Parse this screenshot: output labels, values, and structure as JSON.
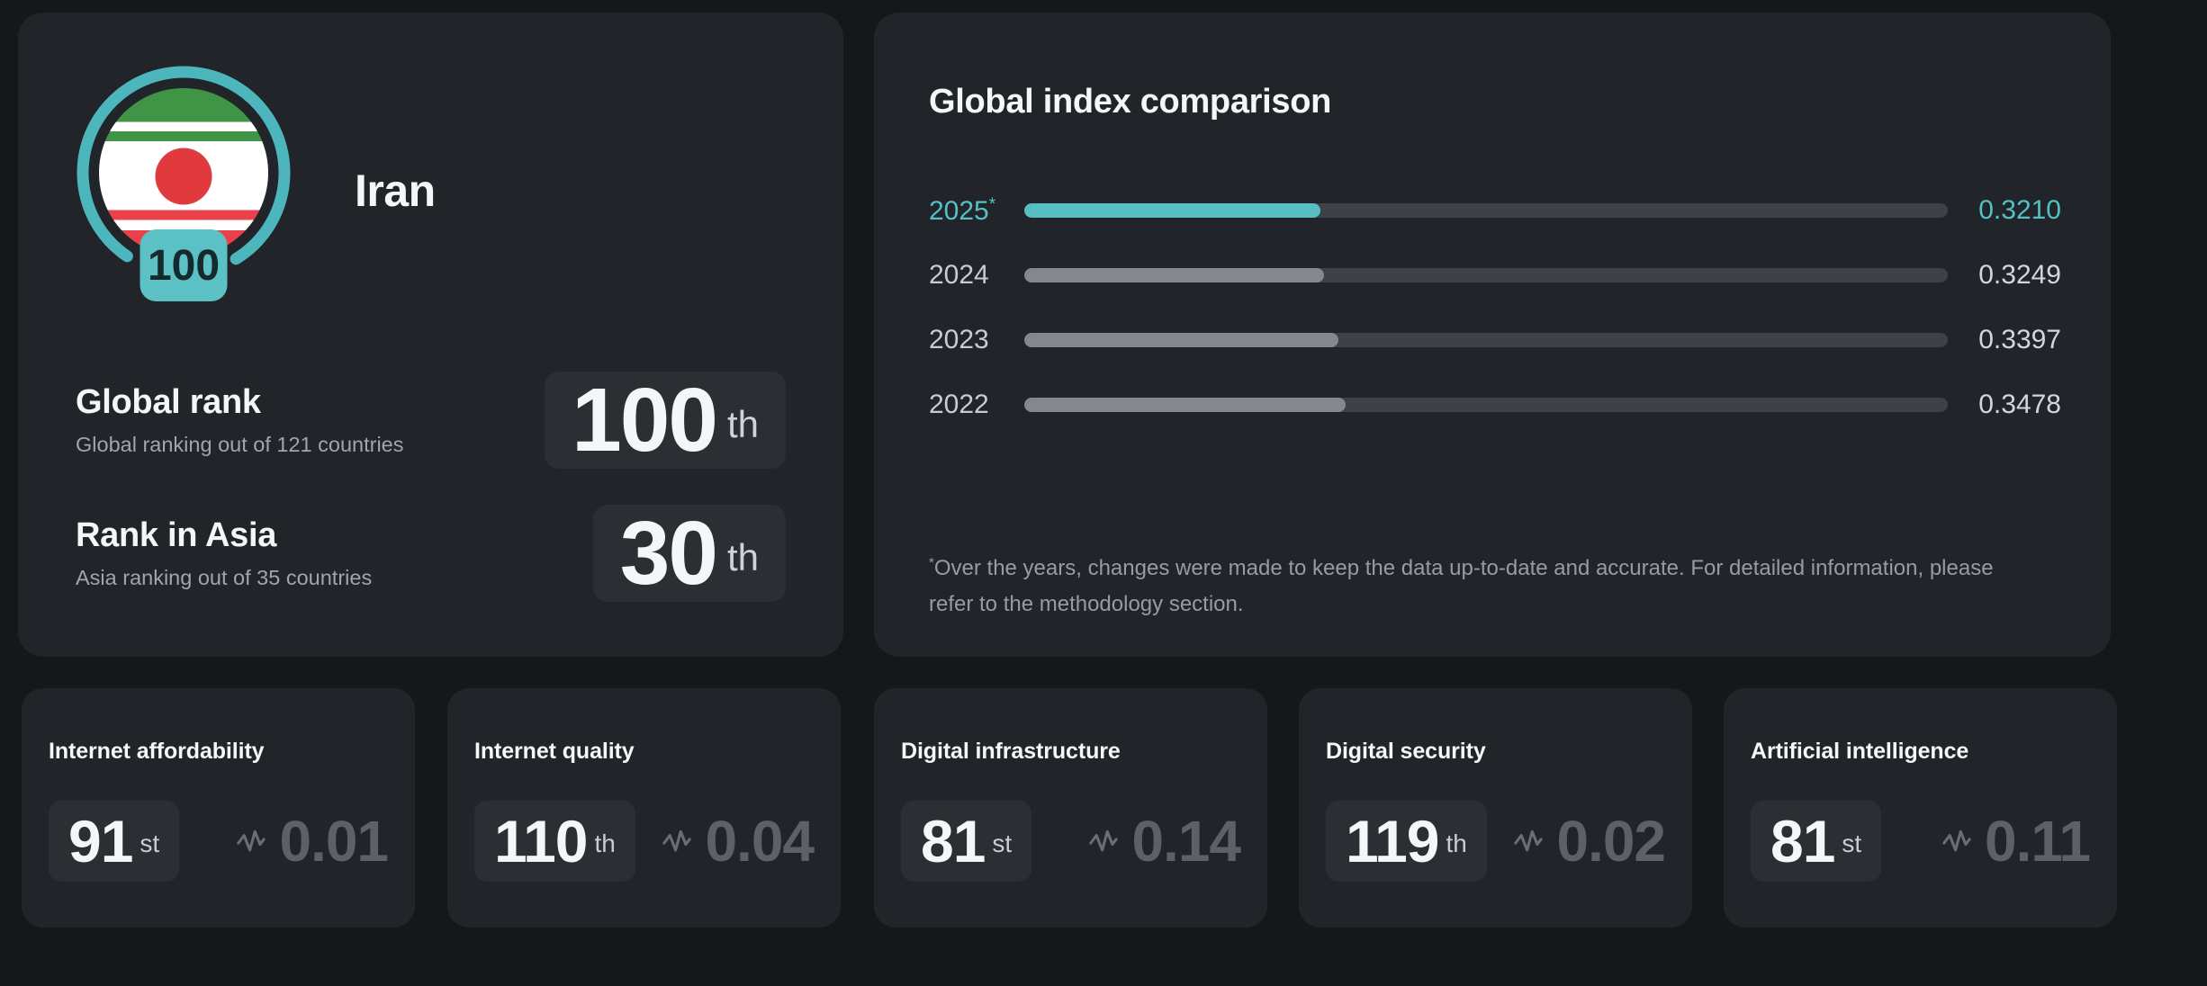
{
  "country_card": {
    "country": "Iran",
    "flag_badge_score": "100",
    "rows": [
      {
        "title": "Global rank",
        "subtitle": "Global ranking out of 121 countries",
        "rank": "100",
        "suffix": "th"
      },
      {
        "title": "Rank in Asia",
        "subtitle": "Asia ranking out of 35 countries",
        "rank": "30",
        "suffix": "th"
      }
    ]
  },
  "comparison_card": {
    "title": "Global index comparison",
    "footnote_mark": "*",
    "footnote": "Over the years, changes were made to keep the data up-to-date and accurate. For detailed information, please refer to the methodology section."
  },
  "chart_data": {
    "type": "bar",
    "orientation": "horizontal",
    "title": "Global index comparison",
    "categories": [
      "2025",
      "2024",
      "2023",
      "2022"
    ],
    "values": [
      0.321,
      0.3249,
      0.3397,
      0.3478
    ],
    "value_labels": [
      "0.3210",
      "0.3249",
      "0.3397",
      "0.3478"
    ],
    "highlight_index": 0,
    "annotation_marker_on": "2025",
    "xlim": [
      0,
      1
    ],
    "grid": false,
    "legend": false
  },
  "stat_cards": [
    {
      "title": "Internet affordability",
      "rank": "91",
      "suffix": "st",
      "score": "0.01"
    },
    {
      "title": "Internet quality",
      "rank": "110",
      "suffix": "th",
      "score": "0.04"
    },
    {
      "title": "Digital infrastructure",
      "rank": "81",
      "suffix": "st",
      "score": "0.14"
    },
    {
      "title": "Digital security",
      "rank": "119",
      "suffix": "th",
      "score": "0.02"
    },
    {
      "title": "Artificial intelligence",
      "rank": "81",
      "suffix": "st",
      "score": "0.11"
    }
  ],
  "colors": {
    "page_bg": "#15171A",
    "card_bg": "#212429",
    "box_bg": "#2B2E33",
    "accent_teal": "#53C1C6",
    "ring_teal": "#4DB6BC",
    "badge_teal": "#5CC1C5",
    "bar_track": "#3E4247",
    "bar_fill_past": "#84888D",
    "flag_green": "#3F9446",
    "flag_red": "#E23B41",
    "muted_text": "#A2A6AB",
    "score_text": "#5D6167"
  }
}
